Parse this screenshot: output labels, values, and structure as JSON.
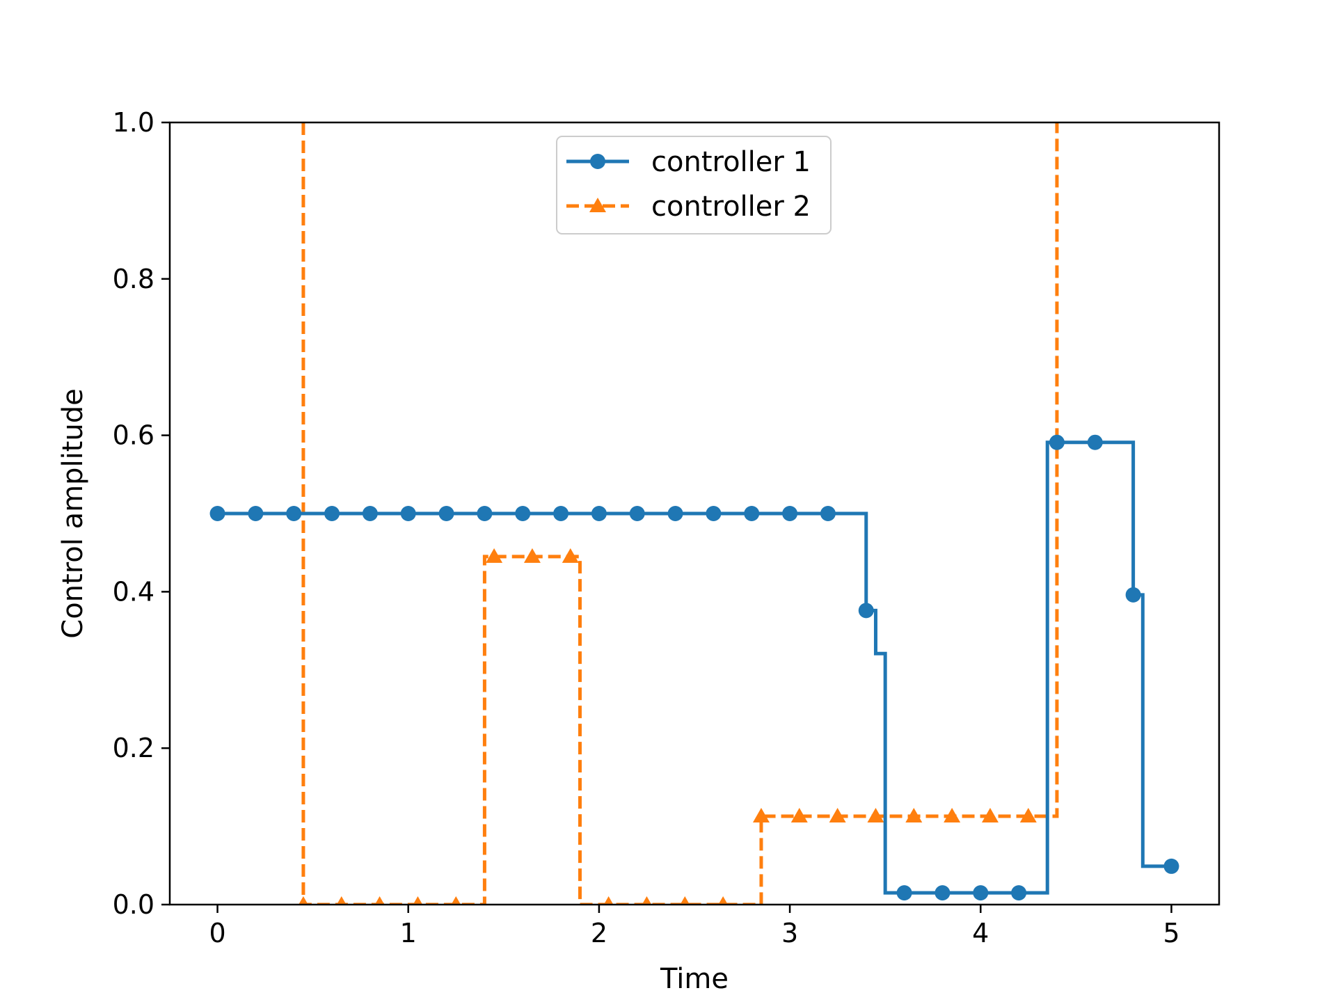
{
  "chart_data": {
    "type": "line",
    "title": "",
    "xlabel": "Time",
    "ylabel": "Control amplitude",
    "xlim": [
      -0.25,
      5.25
    ],
    "ylim": [
      0.0,
      1.0
    ],
    "x_ticks": [
      0,
      1,
      2,
      3,
      4,
      5
    ],
    "x_tick_labels": [
      "0",
      "1",
      "2",
      "3",
      "4",
      "5"
    ],
    "y_ticks": [
      0.0,
      0.2,
      0.4,
      0.6,
      0.8,
      1.0
    ],
    "y_tick_labels": [
      "0.0",
      "0.2",
      "0.4",
      "0.6",
      "0.8",
      "1.0"
    ],
    "grid": false,
    "legend_position": "top-center",
    "series": [
      {
        "name": "controller 1",
        "color": "#1f77b4",
        "linestyle": "solid",
        "marker": "circle",
        "drawstyle": "steps-post",
        "x": [
          0.0,
          0.2,
          0.4,
          0.6,
          0.8,
          1.0,
          1.2,
          1.4,
          1.6,
          1.8,
          2.0,
          2.2,
          2.4,
          2.6,
          2.8,
          3.0,
          3.2,
          3.4,
          3.6,
          3.8,
          4.0,
          4.2,
          4.4,
          4.6,
          4.8,
          5.0
        ],
        "steps": [
          [
            0.0,
            0.5
          ],
          [
            3.4,
            0.376
          ],
          [
            3.45,
            0.321
          ],
          [
            3.5,
            0.015
          ],
          [
            4.35,
            0.591
          ],
          [
            4.8,
            0.396
          ],
          [
            4.85,
            0.049
          ],
          [
            5.0,
            0.049
          ]
        ]
      },
      {
        "name": "controller 2",
        "color": "#ff7f0e",
        "linestyle": "dashed",
        "marker": "triangle",
        "drawstyle": "steps-post",
        "steps": [
          [
            0.45,
            1.0
          ],
          [
            0.45,
            0.0
          ],
          [
            1.4,
            0.445
          ],
          [
            1.9,
            0.0
          ],
          [
            2.85,
            0.113
          ],
          [
            4.4,
            0.113
          ],
          [
            4.4,
            1.0
          ]
        ],
        "markers": [
          [
            0.45,
            0.0
          ],
          [
            0.65,
            0.0
          ],
          [
            0.85,
            0.0
          ],
          [
            1.05,
            0.0
          ],
          [
            1.25,
            0.0
          ],
          [
            1.45,
            0.445
          ],
          [
            1.65,
            0.445
          ],
          [
            1.85,
            0.445
          ],
          [
            2.05,
            0.0
          ],
          [
            2.25,
            0.0
          ],
          [
            2.45,
            0.0
          ],
          [
            2.65,
            0.0
          ],
          [
            2.85,
            0.113
          ],
          [
            3.05,
            0.113
          ],
          [
            3.25,
            0.113
          ],
          [
            3.45,
            0.113
          ],
          [
            3.65,
            0.113
          ],
          [
            3.85,
            0.113
          ],
          [
            4.05,
            0.113
          ],
          [
            4.25,
            0.113
          ]
        ]
      }
    ]
  }
}
